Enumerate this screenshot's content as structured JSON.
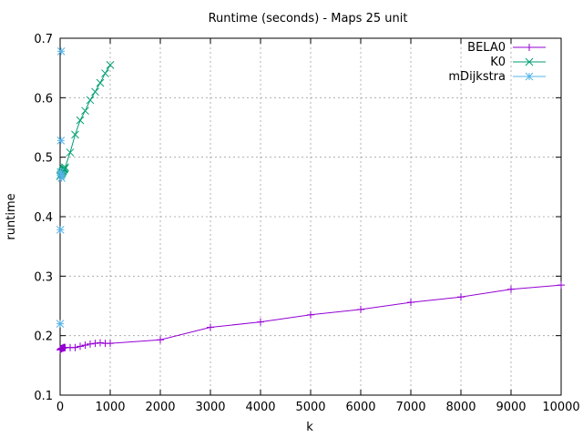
{
  "chart_data": {
    "type": "line",
    "title": "Runtime (seconds) - Maps 25 unit",
    "xlabel": "k",
    "ylabel": "runtime",
    "xlim": [
      0,
      10000
    ],
    "ylim": [
      0.1,
      0.7
    ],
    "xticks": [
      0,
      1000,
      2000,
      3000,
      4000,
      5000,
      6000,
      7000,
      8000,
      9000,
      10000
    ],
    "yticks": [
      0.1,
      0.2,
      0.3,
      0.4,
      0.5,
      0.6,
      0.7
    ],
    "grid": true,
    "legend_position": "top-right",
    "series": [
      {
        "name": "BELA0",
        "color": "#9400d3",
        "marker": "plus",
        "x": [
          1,
          10,
          20,
          30,
          40,
          50,
          60,
          70,
          80,
          90,
          100,
          200,
          300,
          400,
          500,
          600,
          700,
          800,
          900,
          1000,
          2000,
          3000,
          4000,
          5000,
          6000,
          7000,
          8000,
          9000,
          10000
        ],
        "y": [
          0.176,
          0.177,
          0.178,
          0.178,
          0.179,
          0.179,
          0.179,
          0.18,
          0.18,
          0.18,
          0.18,
          0.18,
          0.18,
          0.182,
          0.184,
          0.186,
          0.187,
          0.188,
          0.187,
          0.187,
          0.193,
          0.214,
          0.223,
          0.235,
          0.244,
          0.256,
          0.265,
          0.278,
          0.285
        ]
      },
      {
        "name": "K0",
        "color": "#009e73",
        "marker": "x",
        "x": [
          1,
          10,
          20,
          30,
          40,
          50,
          60,
          70,
          80,
          90,
          100,
          200,
          300,
          400,
          500,
          600,
          700,
          800,
          900,
          1000
        ],
        "y": [
          0.468,
          0.47,
          0.471,
          0.473,
          0.474,
          0.476,
          0.477,
          0.479,
          0.48,
          0.481,
          0.483,
          0.508,
          0.538,
          0.562,
          0.578,
          0.596,
          0.61,
          0.625,
          0.641,
          0.655
        ]
      },
      {
        "name": "mDijkstra",
        "color": "#56b4e9",
        "marker": "star",
        "x": [
          1,
          5,
          10,
          15,
          20,
          25,
          30
        ],
        "y": [
          0.22,
          0.378,
          0.475,
          0.528,
          0.678,
          0.47,
          0.465
        ]
      }
    ]
  }
}
